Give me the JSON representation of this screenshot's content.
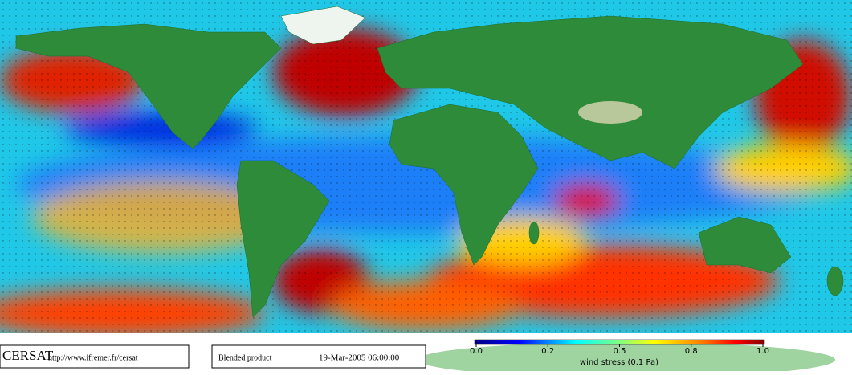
{
  "footer": {
    "brand": "CERSAT",
    "url": "http://www.ifremer.fr/cersat",
    "product": "Blended product",
    "date": "19-Mar-2005 06:00:00"
  },
  "colorbar": {
    "label": "wind stress (0.1 Pa)",
    "ticks": [
      {
        "value": 0,
        "label": "0.0"
      },
      0.2,
      0.5,
      0.8,
      {
        "value": 1,
        "label": "1.0"
      }
    ]
  }
}
